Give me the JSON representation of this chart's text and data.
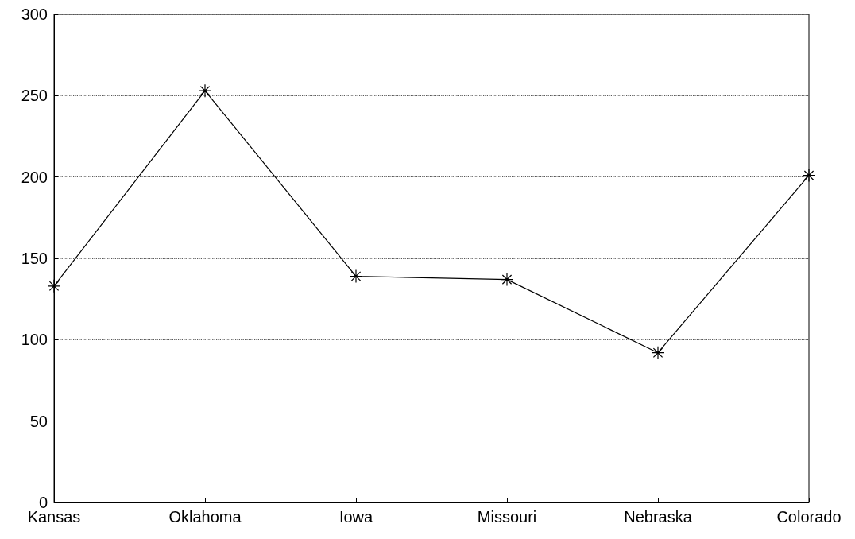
{
  "chart_data": {
    "type": "line",
    "categories": [
      "Kansas",
      "Oklahoma",
      "Iowa",
      "Missouri",
      "Nebraska",
      "Colorado"
    ],
    "series": [
      {
        "color": "#000000",
        "values": [
          133,
          253,
          139,
          137,
          92,
          201
        ]
      }
    ],
    "ylim": [
      0,
      300
    ],
    "yticks": [
      0,
      50,
      100,
      150,
      200,
      250,
      300
    ],
    "grid": "y",
    "marker": "cross",
    "line_style": "solid"
  }
}
